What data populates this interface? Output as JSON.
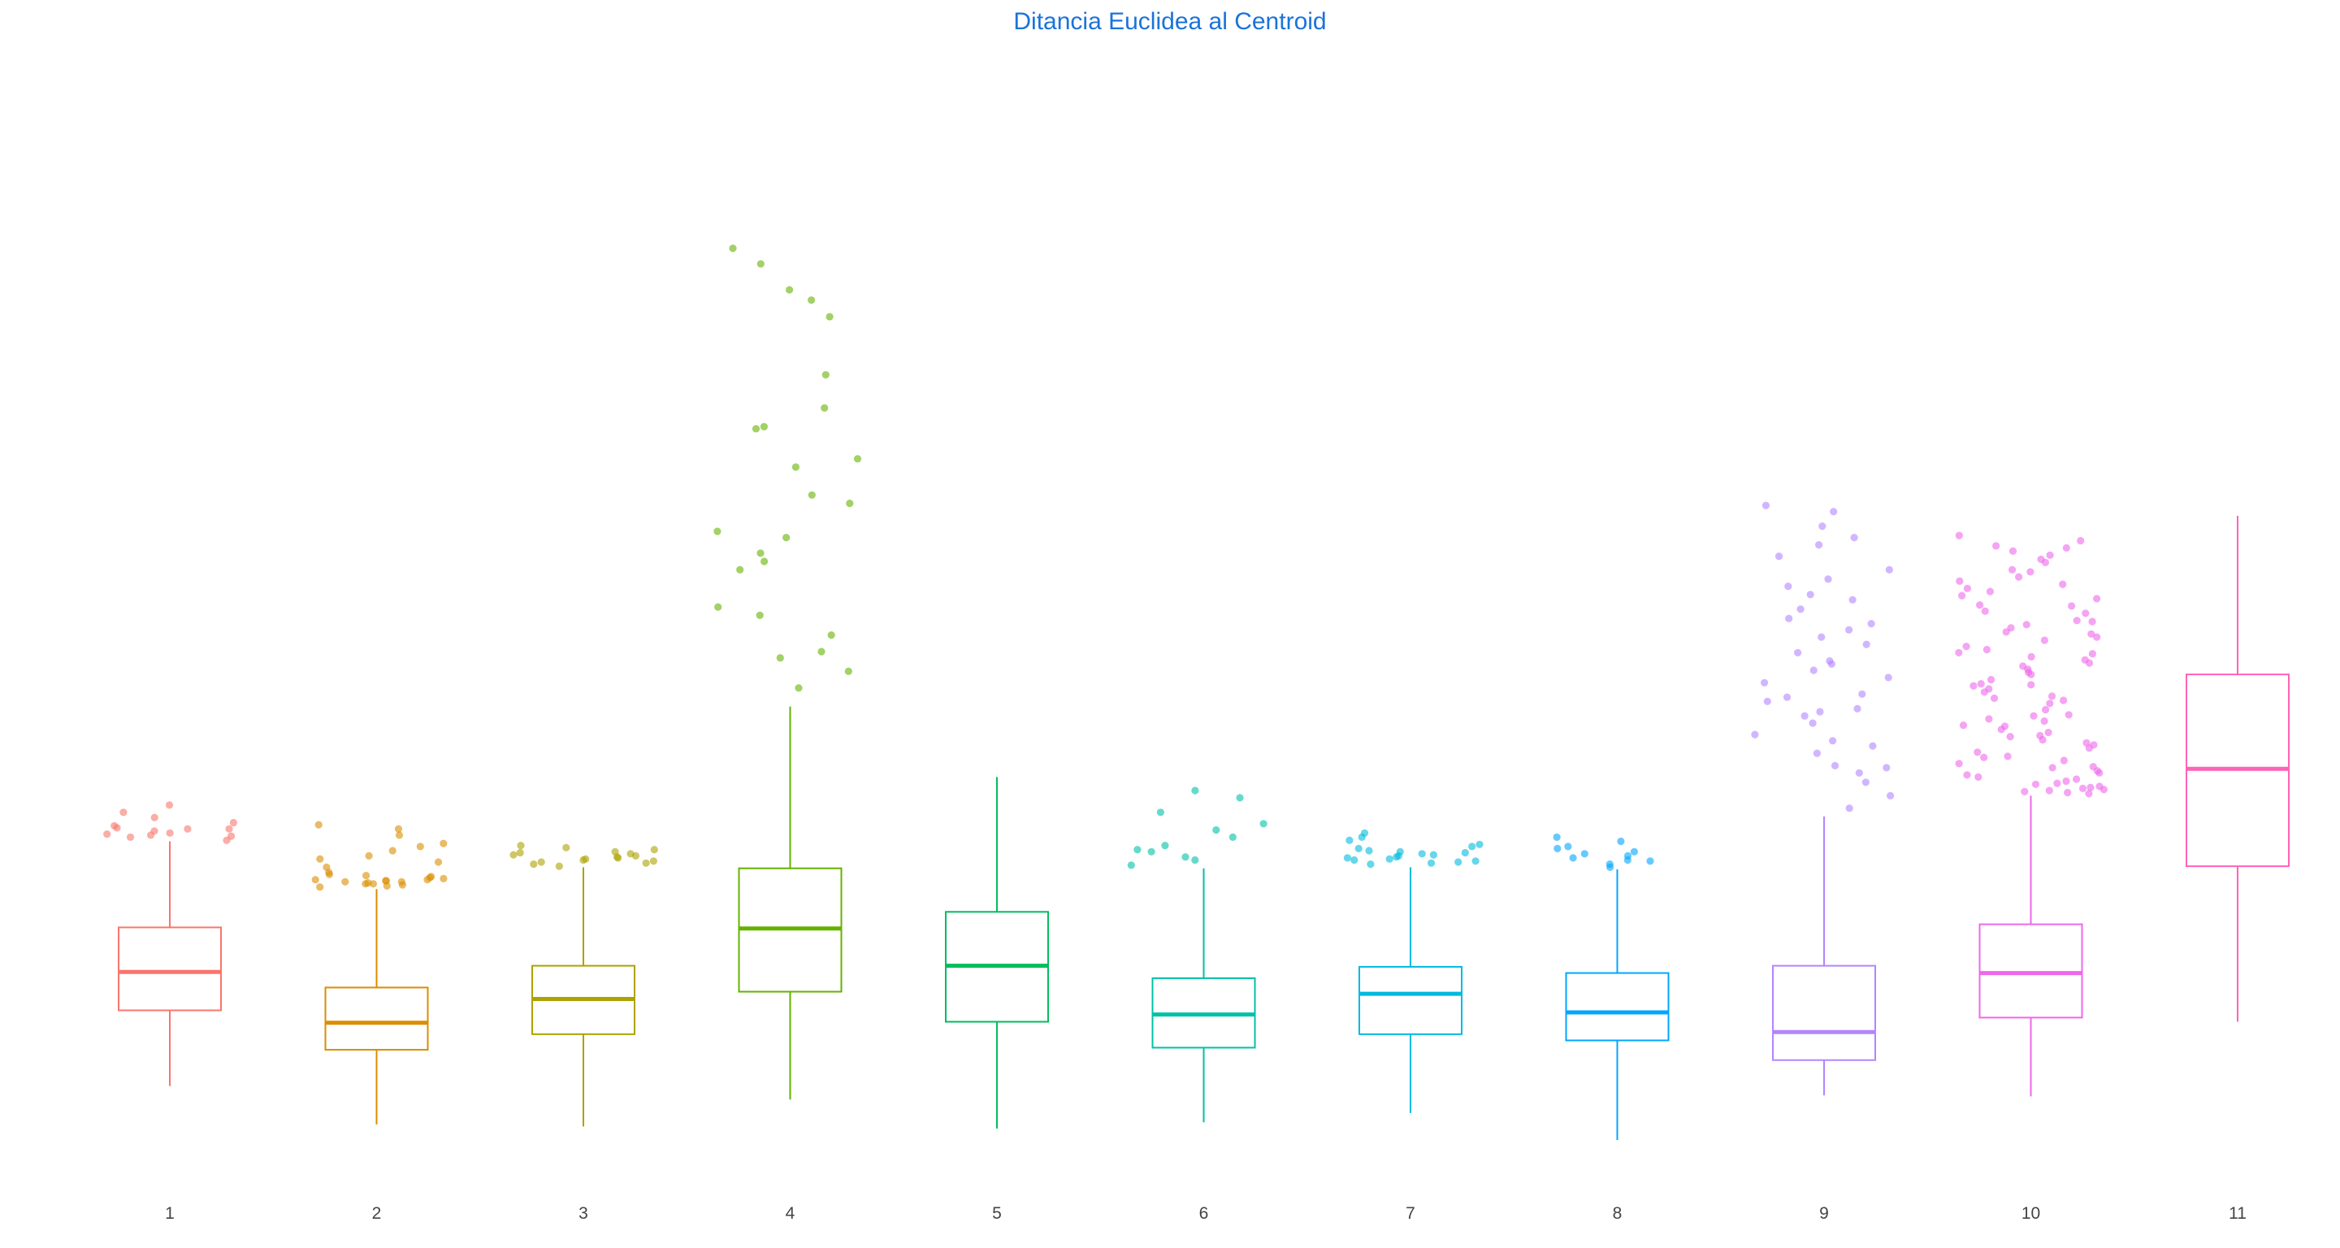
{
  "chart_data": {
    "type": "boxplot",
    "title": "Ditancia Euclidea al Centroid",
    "xlabel": "",
    "ylabel": "",
    "grid": false,
    "legend": "none",
    "ylim": [
      0,
      100
    ],
    "categories": [
      "1",
      "2",
      "3",
      "4",
      "5",
      "6",
      "7",
      "8",
      "9",
      "10",
      "11"
    ],
    "colors": [
      "#F8766D",
      "#DB8E00",
      "#AEA200",
      "#64B200",
      "#00BD5C",
      "#00C1A7",
      "#00BADE",
      "#00A6FF",
      "#B385FF",
      "#EF67EB",
      "#FF63B6"
    ],
    "boxes": [
      {
        "name": "1",
        "whisker_low": 5.2,
        "q1": 12.5,
        "median": 16.2,
        "q3": 20.5,
        "whisker_high": 28.8
      },
      {
        "name": "2",
        "whisker_low": 1.5,
        "q1": 8.7,
        "median": 11.3,
        "q3": 14.7,
        "whisker_high": 24.2
      },
      {
        "name": "3",
        "whisker_low": 1.3,
        "q1": 10.2,
        "median": 13.6,
        "q3": 16.8,
        "whisker_high": 26.3
      },
      {
        "name": "4",
        "whisker_low": 3.9,
        "q1": 14.3,
        "median": 20.4,
        "q3": 26.2,
        "whisker_high": 41.8
      },
      {
        "name": "5",
        "whisker_low": 1.1,
        "q1": 11.4,
        "median": 16.8,
        "q3": 22.0,
        "whisker_high": 35.0
      },
      {
        "name": "6",
        "whisker_low": 1.7,
        "q1": 8.9,
        "median": 12.1,
        "q3": 15.6,
        "whisker_high": 26.2
      },
      {
        "name": "7",
        "whisker_low": 2.6,
        "q1": 10.2,
        "median": 14.1,
        "q3": 16.7,
        "whisker_high": 26.3
      },
      {
        "name": "8",
        "whisker_low": 0.0,
        "q1": 9.6,
        "median": 12.3,
        "q3": 16.1,
        "whisker_high": 26.1
      },
      {
        "name": "9",
        "whisker_low": 4.3,
        "q1": 7.7,
        "median": 10.4,
        "q3": 16.8,
        "whisker_high": 31.2
      },
      {
        "name": "10",
        "whisker_low": 4.2,
        "q1": 11.8,
        "median": 16.1,
        "q3": 20.8,
        "whisker_high": 33.2
      },
      {
        "name": "11",
        "whisker_low": 11.4,
        "q1": 26.4,
        "median": 35.8,
        "q3": 44.9,
        "whisker_high": 60.2
      }
    ],
    "outliers": [
      {
        "name": "1",
        "values": [
          28.9,
          29.3,
          29.5,
          29.8,
          30.0,
          30.1,
          29.4,
          29.6,
          30.0,
          29.2,
          30.3,
          30.6,
          31.1,
          31.6,
          32.3
        ]
      },
      {
        "name": "2",
        "values": [
          24.4,
          24.7,
          24.9,
          25.0,
          25.3,
          25.5,
          24.6,
          24.8,
          25.1,
          25.4,
          24.5,
          25.2,
          25.0,
          24.9,
          25.6,
          25.8,
          26.3,
          26.8,
          27.1,
          27.4,
          27.9,
          28.3,
          28.6,
          29.4,
          30.0,
          30.4,
          24.7,
          25.1
        ]
      },
      {
        "name": "3",
        "values": [
          26.4,
          26.7,
          27.0,
          27.3,
          27.6,
          27.8,
          28.0,
          28.2,
          28.4,
          27.1,
          27.5,
          26.9,
          27.2,
          26.6,
          27.4,
          27.7,
          26.8
        ]
      },
      {
        "name": "4",
        "values": [
          43.6,
          46.5,
          47.1,
          45.2,
          48.7,
          51.4,
          50.6,
          55.8,
          56.6,
          55.0,
          58.1,
          58.7,
          61.4,
          62.2,
          64.9,
          65.7,
          68.6,
          68.8,
          70.6,
          73.8,
          79.4,
          81.0,
          82.0,
          84.5,
          86.0
        ]
      },
      {
        "name": "6",
        "values": [
          26.5,
          27.0,
          27.8,
          28.4,
          29.2,
          29.9,
          30.5,
          31.6,
          33.0,
          33.7,
          27.3,
          28.0
        ]
      },
      {
        "name": "7",
        "values": [
          26.6,
          26.9,
          27.1,
          27.3,
          27.5,
          27.7,
          27.9,
          28.1,
          28.5,
          28.9,
          26.8,
          27.2,
          27.4,
          27.0,
          27.6,
          26.7,
          27.8,
          28.3,
          29.2,
          29.6
        ]
      },
      {
        "name": "8",
        "values": [
          26.3,
          26.6,
          27.0,
          27.4,
          27.8,
          28.3,
          28.8,
          29.2,
          27.2,
          26.9,
          27.6,
          28.1
        ]
      },
      {
        "name": "9",
        "values": [
          32.0,
          33.2,
          34.5,
          35.4,
          36.1,
          37.3,
          38.0,
          39.1,
          40.2,
          40.9,
          41.6,
          42.3,
          43.0,
          44.1,
          44.6,
          45.3,
          46.2,
          47.0,
          47.8,
          48.5,
          49.2,
          50.3,
          51.2,
          52.6,
          53.4,
          54.1,
          55.0,
          56.3,
          57.4,
          58.1,
          59.2,
          60.6,
          61.2,
          38.5,
          42.7,
          45.9,
          49.8,
          35.9,
          41.3,
          52.1
        ]
      },
      {
        "name": "10",
        "values": [
          33.4,
          33.6,
          33.8,
          34.0,
          34.3,
          34.6,
          35.0,
          35.4,
          35.9,
          36.3,
          36.9,
          37.4,
          38.1,
          38.6,
          39.3,
          39.9,
          40.4,
          40.9,
          41.5,
          42.1,
          42.6,
          43.2,
          43.8,
          44.4,
          45.1,
          45.7,
          46.3,
          46.9,
          47.6,
          48.2,
          48.8,
          49.4,
          50.1,
          50.8,
          51.5,
          52.2,
          52.9,
          53.6,
          54.3,
          55.0,
          55.7,
          56.4,
          57.1,
          57.8,
          58.3,
          33.5,
          33.9,
          34.1,
          34.8,
          35.2,
          36.0,
          37.0,
          38.3,
          39.6,
          41.0,
          42.4,
          43.9,
          45.4,
          47.0,
          48.5,
          50.0,
          51.6,
          53.2,
          54.8,
          56.0,
          57.3,
          33.7,
          34.4,
          35.6,
          36.6,
          37.8,
          39.0,
          40.6,
          42.8,
          44.9,
          46.6,
          49.0,
          51.0,
          53.9,
          56.8,
          40.0,
          44.0,
          47.3,
          49.7,
          38.9,
          43.5,
          46.0,
          52.5
        ]
      }
    ]
  }
}
